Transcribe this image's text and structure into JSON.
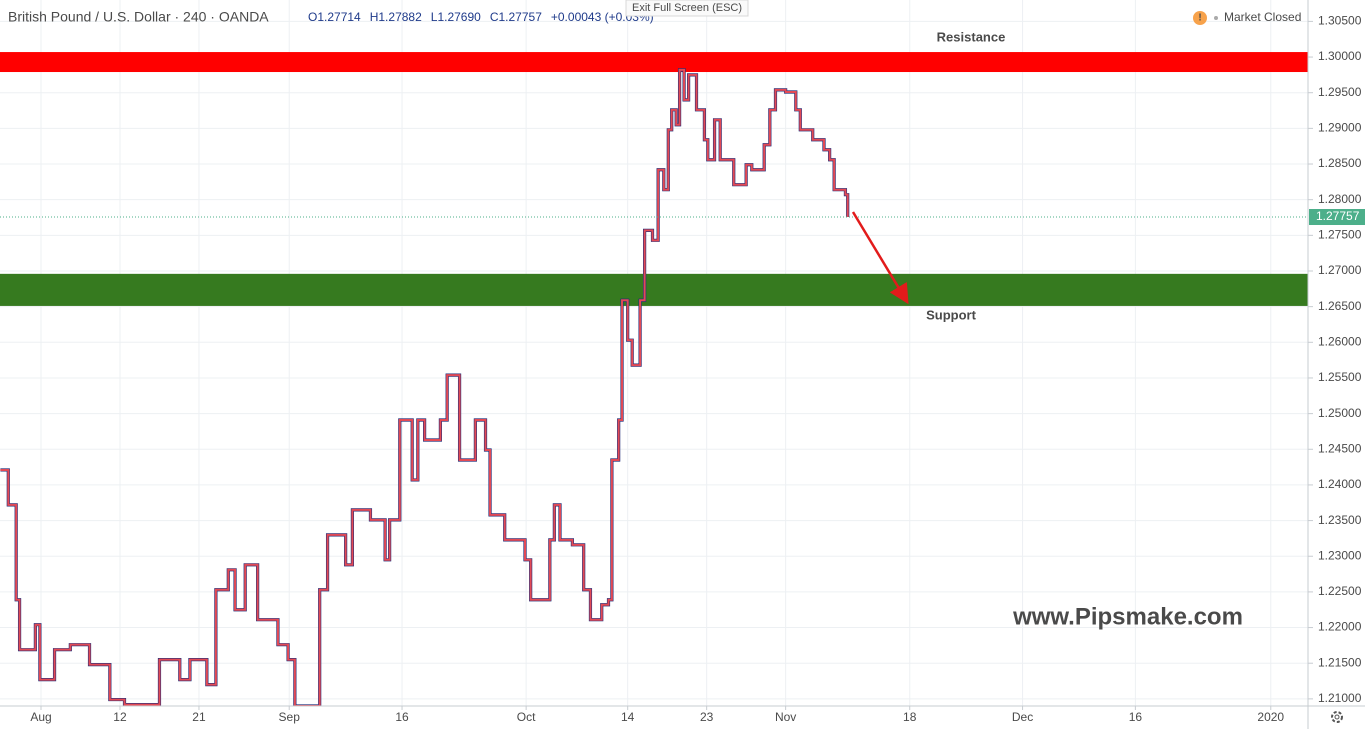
{
  "header": {
    "symbol": "British Pound / U.S. Dollar · 240 · OANDA",
    "ohlc": [
      "O1.27714",
      "H1.27882",
      "L1.27690",
      "C1.27757",
      "+0.00043 (+0.03%)"
    ],
    "tooltip": "Exit Full Screen (ESC)",
    "status": "Market Closed",
    "watermark": "www.Pipsmake.com"
  },
  "chart_data": {
    "type": "line",
    "series": [
      {
        "name": "GBP/USD",
        "color": "#e34a55",
        "x": [
          -3.6,
          -2.9,
          -2.2,
          -1.9,
          -0.5,
          -0.1,
          1.2,
          2.6,
          4.3,
          6.1,
          7.4,
          9.7,
          10.5,
          12.3,
          13.2,
          14.7,
          15.5,
          16.6,
          17.2,
          18.1,
          19.2,
          21.0,
          21.9,
          22.5,
          24.0,
          24.7,
          25.4,
          27.0,
          27.6,
          29.2,
          30.5,
          30.9,
          31.8,
          32.9,
          33.4,
          34.0,
          35.4,
          36.0,
          37.1,
          38.5,
          39.4,
          39.8,
          41.1,
          42.9,
          43.4,
          44.0,
          45.1,
          45.5,
          46.0,
          47.1,
          48.1,
          48.7,
          49.7,
          50.3,
          50.6,
          51.2,
          51.5,
          52.0,
          52.4,
          53.1,
          53.5,
          54.2,
          54.7,
          55.2,
          55.6,
          55.9,
          56.3,
          56.6,
          57.0,
          57.4,
          58.1,
          58.8,
          59.1,
          59.7,
          60.2,
          61.4,
          62.5,
          63.0,
          64.1,
          64.6,
          65.1,
          66.0,
          66.9,
          67.3,
          68.4,
          69.4,
          69.9,
          70.3,
          71.3,
          71.5
        ],
        "values": [
          1.2421,
          1.2372,
          1.2239,
          1.2169,
          1.2204,
          1.2127,
          1.2169,
          1.2176,
          1.2148,
          1.2099,
          1.2092,
          1.2092,
          1.2155,
          1.2127,
          1.2155,
          1.212,
          1.2253,
          1.2281,
          1.2225,
          1.2288,
          1.2211,
          1.2176,
          1.2155,
          1.209,
          1.209,
          1.2253,
          1.233,
          1.2288,
          1.2365,
          1.2351,
          1.2295,
          1.2351,
          1.2491,
          1.2407,
          1.2491,
          1.2463,
          1.2491,
          1.2554,
          1.2435,
          1.2491,
          1.2449,
          1.2358,
          1.2323,
          1.2295,
          1.2239,
          1.2239,
          1.2323,
          1.2372,
          1.2323,
          1.2316,
          1.2253,
          1.2211,
          1.2232,
          1.2239,
          1.2435,
          1.2491,
          1.2659,
          1.2603,
          1.2568,
          1.2659,
          1.2757,
          1.2743,
          1.2842,
          1.2814,
          1.2898,
          1.2926,
          1.2905,
          1.2982,
          1.294,
          1.2975,
          1.2926,
          1.2884,
          1.2856,
          1.2912,
          1.2856,
          1.2821,
          1.2849,
          1.2842,
          1.2877,
          1.2926,
          1.2954,
          1.2951,
          1.2926,
          1.2898,
          1.2884,
          1.287,
          1.2856,
          1.2814,
          1.2807,
          1.27757
        ]
      }
    ],
    "last_price": 1.27757,
    "last_color": "#4caf8a",
    "zones": [
      {
        "label": "Resistance",
        "range": [
          1.2979,
          1.3007
        ],
        "color": "#ff0000"
      },
      {
        "label": "Support",
        "range": [
          1.2651,
          1.2696
        ],
        "color": "#367a1f"
      }
    ],
    "xlim": [
      -3.635,
      112.3
    ],
    "ylim": [
      1.209,
      1.308
    ],
    "xticks": [
      {
        "value": 0,
        "label": "Aug"
      },
      {
        "value": 7,
        "label": "12"
      },
      {
        "value": 14,
        "label": "21"
      },
      {
        "value": 22,
        "label": "Sep"
      },
      {
        "value": 32,
        "label": "16"
      },
      {
        "value": 43,
        "label": "Oct"
      },
      {
        "value": 52,
        "label": "14"
      },
      {
        "value": 59,
        "label": "23"
      },
      {
        "value": 66,
        "label": "Nov"
      },
      {
        "value": 77,
        "label": "18"
      },
      {
        "value": 87,
        "label": "Dec"
      },
      {
        "value": 97,
        "label": "16"
      },
      {
        "value": 109,
        "label": "2020"
      }
    ],
    "yticks": [
      {
        "value": 1.21,
        "label": "1.21000"
      },
      {
        "value": 1.215,
        "label": "1.21500"
      },
      {
        "value": 1.22,
        "label": "1.22000"
      },
      {
        "value": 1.225,
        "label": "1.22500"
      },
      {
        "value": 1.23,
        "label": "1.23000"
      },
      {
        "value": 1.235,
        "label": "1.23500"
      },
      {
        "value": 1.24,
        "label": "1.24000"
      },
      {
        "value": 1.245,
        "label": "1.24500"
      },
      {
        "value": 1.25,
        "label": "1.25000"
      },
      {
        "value": 1.255,
        "label": "1.25500"
      },
      {
        "value": 1.26,
        "label": "1.26000"
      },
      {
        "value": 1.265,
        "label": "1.26500"
      },
      {
        "value": 1.27,
        "label": "1.27000"
      },
      {
        "value": 1.275,
        "label": "1.27500"
      },
      {
        "value": 1.28,
        "label": "1.28000"
      },
      {
        "value": 1.285,
        "label": "1.28500"
      },
      {
        "value": 1.29,
        "label": "1.29000"
      },
      {
        "value": 1.295,
        "label": "1.29500"
      },
      {
        "value": 1.3,
        "label": "1.30000"
      },
      {
        "value": 1.305,
        "label": "1.30500"
      }
    ],
    "grid": true
  }
}
